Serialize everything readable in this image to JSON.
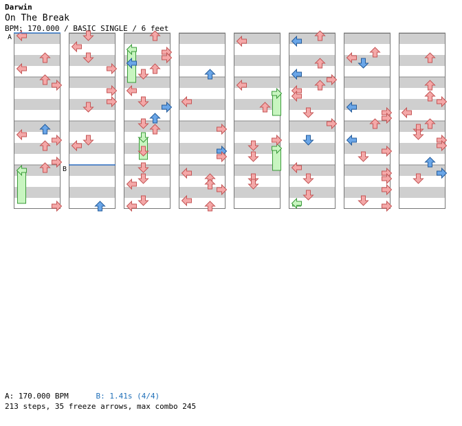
{
  "header": {
    "artist": "Darwin",
    "title": "On The Break",
    "meta": "BPM: 170.000 / BASIC SINGLE / 6 feet"
  },
  "chart_data": {
    "type": "step-chart",
    "columns": 8,
    "measures_per_column": 4,
    "markers": [
      {
        "label": "A",
        "measure": 0
      },
      {
        "label": "B",
        "measure": 7
      }
    ],
    "colors": {
      "arrow_red": "#f4a8a8",
      "arrow_blue": "#6aa6e8",
      "freeze_green": "#c8f5c0",
      "freeze_outline": "#3a9a3a",
      "stripe": "#cfcfcf",
      "marker_line_a": "#3a7fd0",
      "marker_line_b": "#2a6bc0"
    }
  },
  "footer": {
    "bpm_label": "A: 170.000 BPM",
    "stop_label": "B: 1.41s (4/4)",
    "stats": "213 steps, 35 freeze arrows, max combo 245"
  }
}
